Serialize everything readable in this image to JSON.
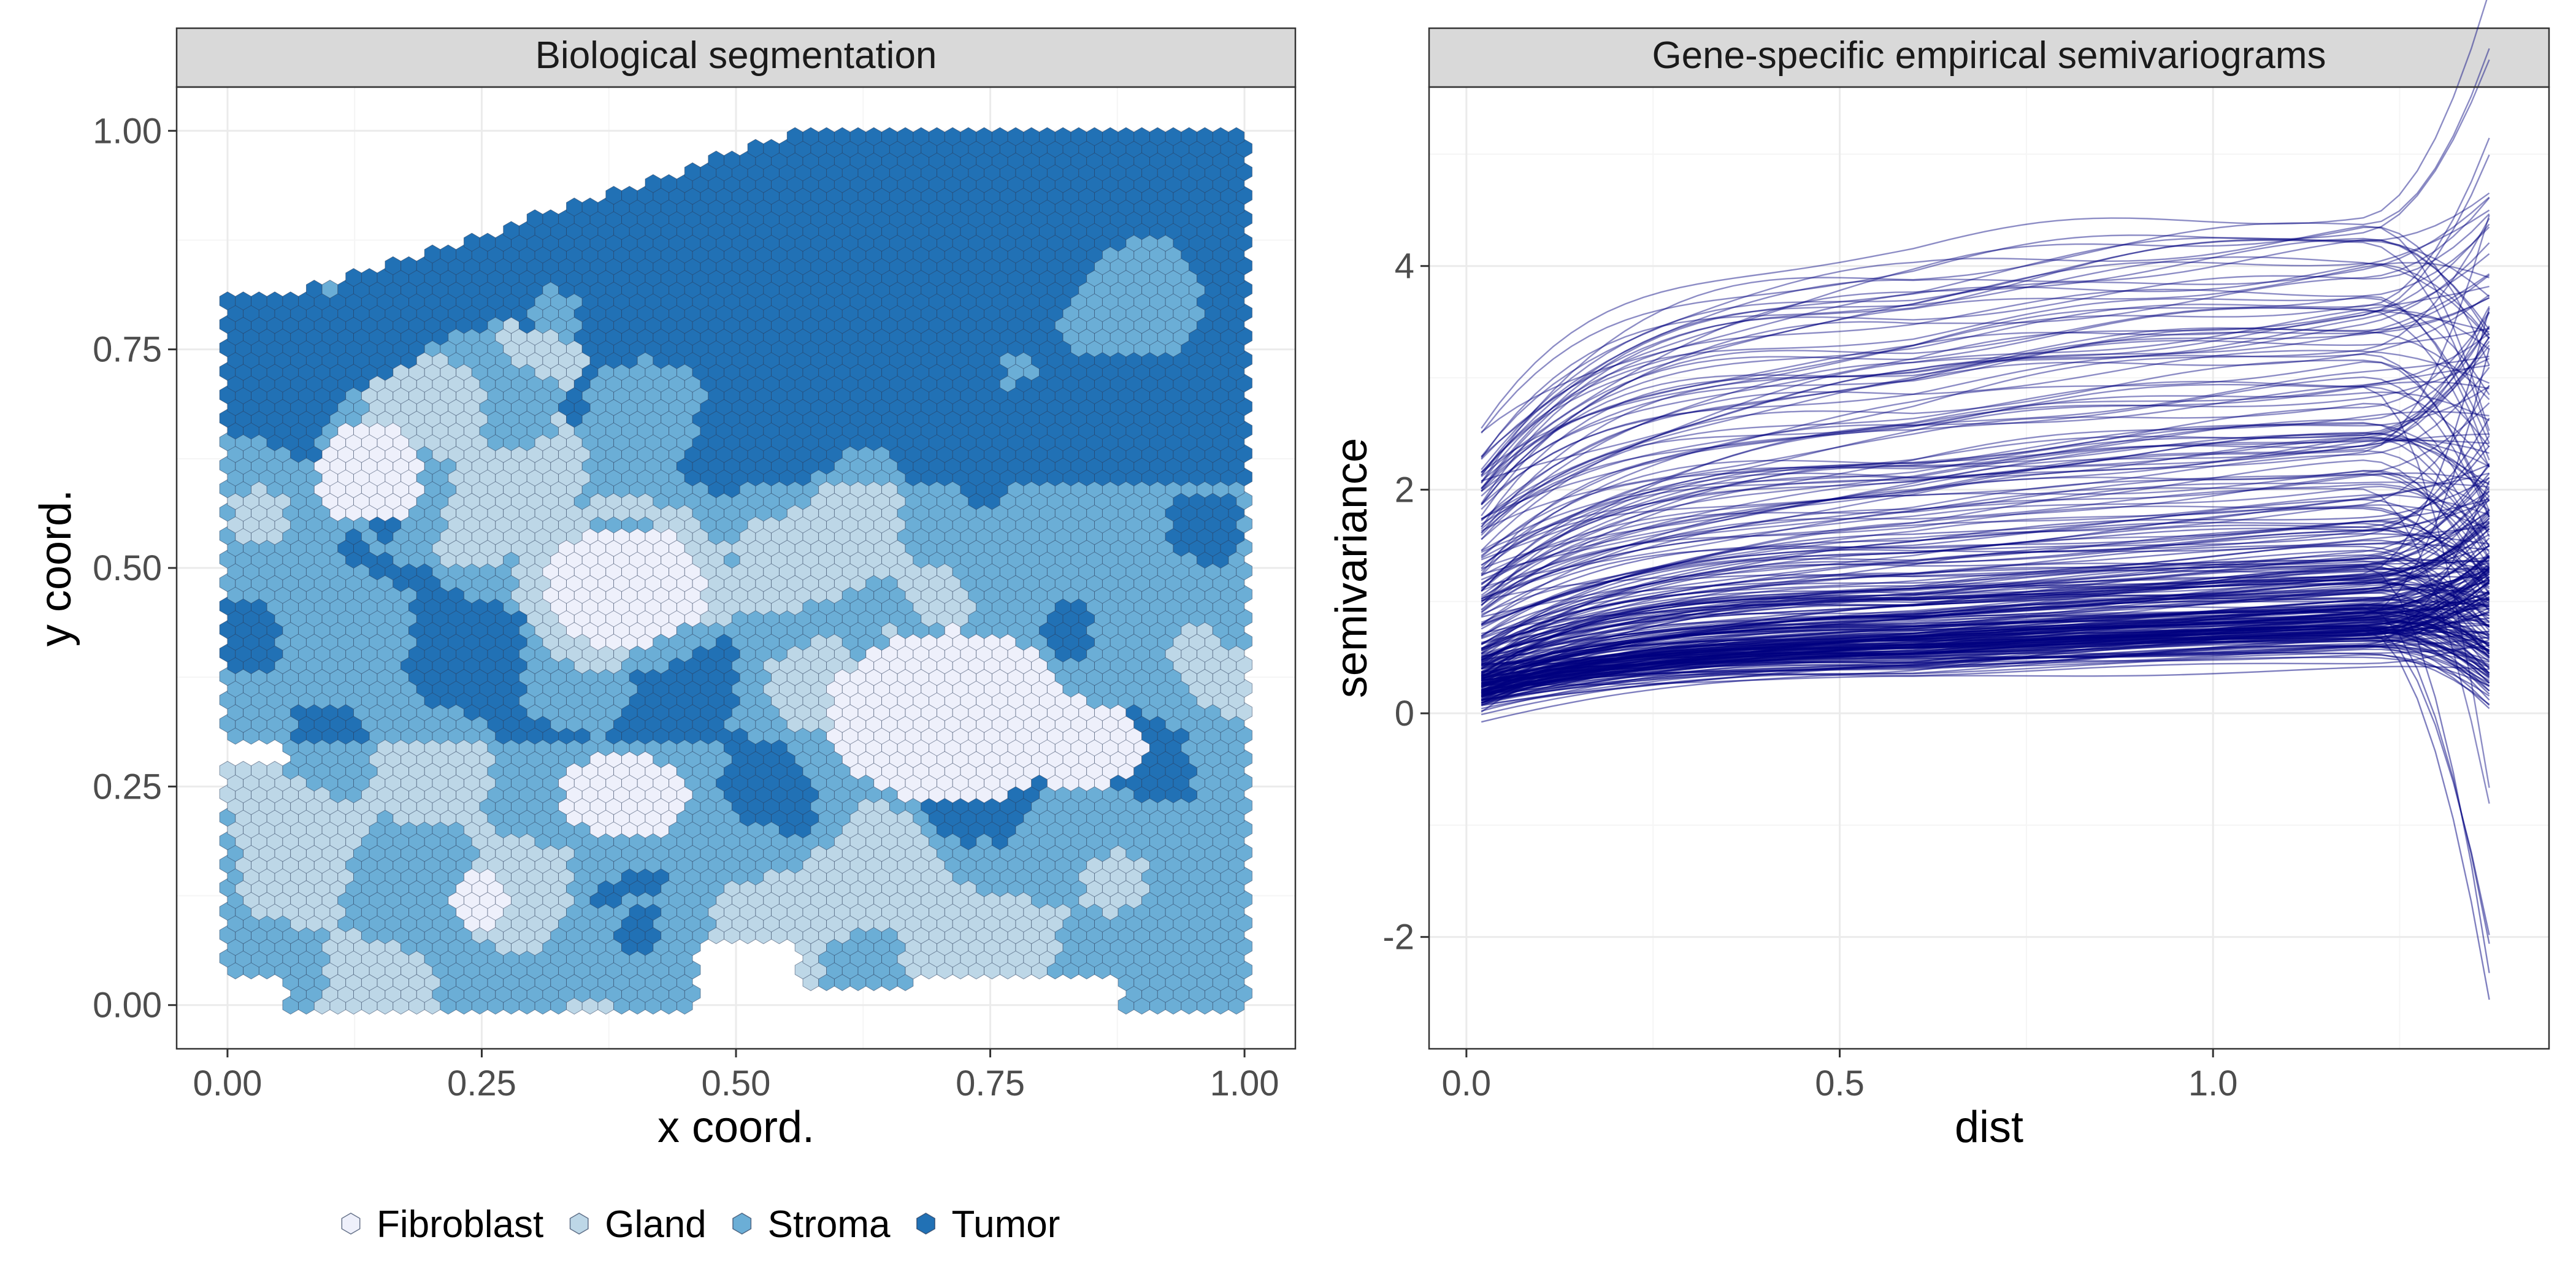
{
  "colors": {
    "Fibroblast": "#eef0fb",
    "Gland": "#bdd7e7",
    "Stroma": "#6baed6",
    "Tumor": "#2171b5",
    "line": "#00007f",
    "strip": "#d9d9d9",
    "grid_major": "#ebebeb",
    "grid_minor": "#f5f5f5"
  },
  "legend": {
    "items": [
      {
        "label": "Fibroblast",
        "icon": "hexagon-icon"
      },
      {
        "label": "Gland",
        "icon": "hexagon-icon"
      },
      {
        "label": "Stroma",
        "icon": "hexagon-icon"
      },
      {
        "label": "Tumor",
        "icon": "hexagon-icon"
      }
    ],
    "placement": "bottom"
  },
  "chart_data": [
    {
      "type": "scatter",
      "title": "Biological segmentation",
      "xlabel": "x coord.",
      "ylabel": "y coord.",
      "xlim": [
        -0.05,
        1.05
      ],
      "ylim": [
        -0.05,
        1.05
      ],
      "xticks": [
        0.0,
        0.25,
        0.5,
        0.75,
        1.0
      ],
      "yticks": [
        0.0,
        0.25,
        0.5,
        0.75,
        1.0
      ],
      "xtick_labels": [
        "0.00",
        "0.25",
        "0.50",
        "0.75",
        "1.00"
      ],
      "ytick_labels": [
        "0.00",
        "0.25",
        "0.50",
        "0.75",
        "1.00"
      ],
      "grid": true,
      "marker": "hexagon",
      "categories": [
        "Fibroblast",
        "Gland",
        "Stroma",
        "Tumor"
      ],
      "regions": [
        {
          "label": "Tumor",
          "x": [
            0.0,
            1.0
          ],
          "y": [
            0.55,
            1.0
          ]
        },
        {
          "label": "Tumor",
          "x": [
            0.0,
            0.5
          ],
          "y": [
            0.3,
            0.55
          ]
        },
        {
          "label": "Stroma",
          "x": [
            0.0,
            1.0
          ],
          "y": [
            0.0,
            0.55
          ]
        },
        {
          "label": "Gland",
          "x": [
            0.1,
            0.35
          ],
          "y": [
            0.5,
            0.75
          ]
        },
        {
          "label": "Fibroblast",
          "x": [
            0.55,
            0.9
          ],
          "y": [
            0.2,
            0.45
          ]
        },
        {
          "label": "Fibroblast",
          "x": [
            0.33,
            0.48
          ],
          "y": [
            0.4,
            0.55
          ]
        },
        {
          "label": "Fibroblast",
          "x": [
            0.33,
            0.48
          ],
          "y": [
            0.2,
            0.3
          ]
        }
      ]
    },
    {
      "type": "line",
      "title": "Gene-specific empirical semivariograms",
      "xlabel": "dist",
      "ylabel": "semivariance",
      "xlim": [
        -0.05,
        1.45
      ],
      "ylim": [
        -3.0,
        5.6
      ],
      "xticks": [
        0.0,
        0.5,
        1.0
      ],
      "yticks": [
        -2,
        0,
        2,
        4
      ],
      "xtick_labels": [
        "0.0",
        "0.5",
        "1.0"
      ],
      "ytick_labels": [
        "-2",
        "0",
        "2",
        "4"
      ],
      "grid": true,
      "dist_range": [
        0.02,
        1.37
      ],
      "n_curves": 300,
      "curve_start_range": [
        -0.3,
        2.9
      ],
      "curve_plateau_range": [
        0.3,
        4.9
      ],
      "curve_end_range": [
        -2.9,
        5.3
      ]
    }
  ]
}
